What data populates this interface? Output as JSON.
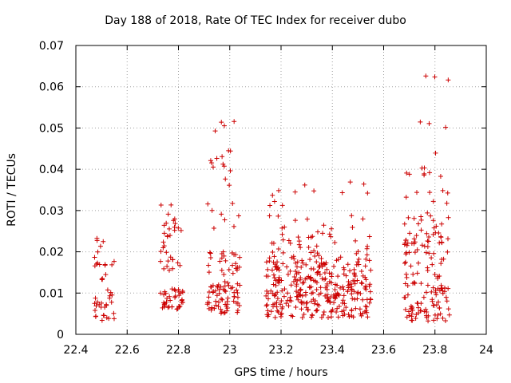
{
  "chart_data": {
    "type": "scatter",
    "title": "Day 188 of 2018, Rate Of TEC Index for receiver dubo",
    "xlabel": "GPS time / hours",
    "ylabel": "ROTI / TECUs",
    "xlim": [
      22.4,
      24
    ],
    "ylim": [
      0,
      0.07
    ],
    "x_ticks": [
      "22.4",
      "22.6",
      "22.8",
      "23",
      "23.2",
      "23.4",
      "23.6",
      "23.8",
      "24"
    ],
    "y_ticks": [
      "0",
      "0.01",
      "0.02",
      "0.03",
      "0.04",
      "0.05",
      "0.06",
      "0.07"
    ],
    "grid": true,
    "marker": "+",
    "color": "#cc0000",
    "clusters": [
      {
        "x_range": [
          22.47,
          22.55
        ],
        "y_bands": [
          [
            0.003,
            0.011,
            26
          ],
          [
            0.013,
            0.024,
            18
          ]
        ]
      },
      {
        "x_range": [
          22.73,
          22.82
        ],
        "y_bands": [
          [
            0.006,
            0.011,
            38
          ],
          [
            0.015,
            0.028,
            30
          ],
          [
            0.029,
            0.032,
            3
          ]
        ]
      },
      {
        "x_range": [
          22.91,
          23.04
        ],
        "y_bands": [
          [
            0.005,
            0.012,
            60
          ],
          [
            0.012,
            0.02,
            28
          ],
          [
            0.025,
            0.038,
            10
          ],
          [
            0.039,
            0.045,
            10
          ],
          [
            0.049,
            0.052,
            4
          ]
        ]
      },
      {
        "x_range": [
          23.14,
          23.55
        ],
        "y_bands": [
          [
            0.004,
            0.012,
            190
          ],
          [
            0.012,
            0.019,
            130
          ],
          [
            0.019,
            0.029,
            45
          ],
          [
            0.03,
            0.037,
            12
          ]
        ]
      },
      {
        "x_range": [
          23.68,
          23.86
        ],
        "y_bands": [
          [
            0.003,
            0.012,
            70
          ],
          [
            0.012,
            0.023,
            50
          ],
          [
            0.023,
            0.03,
            25
          ],
          [
            0.031,
            0.044,
            16
          ],
          [
            0.05,
            0.052,
            3
          ],
          [
            0.061,
            0.064,
            3
          ]
        ]
      }
    ]
  }
}
